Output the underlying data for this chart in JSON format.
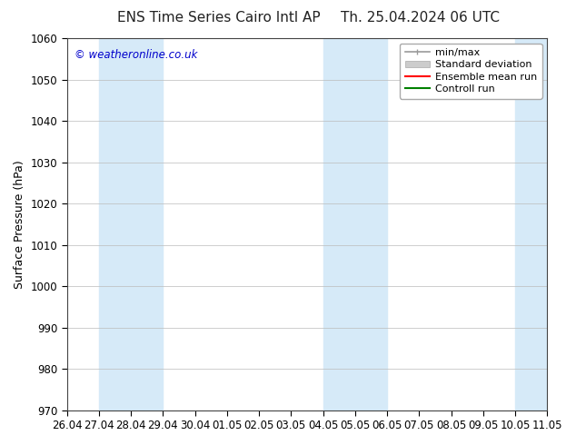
{
  "title_left": "ENS Time Series Cairo Intl AP",
  "title_right": "Th. 25.04.2024 06 UTC",
  "ylabel": "Surface Pressure (hPa)",
  "ylim": [
    970,
    1060
  ],
  "yticks": [
    970,
    980,
    990,
    1000,
    1010,
    1020,
    1030,
    1040,
    1050,
    1060
  ],
  "xtick_labels": [
    "26.04",
    "27.04",
    "28.04",
    "29.04",
    "30.04",
    "01.05",
    "02.05",
    "03.05",
    "04.05",
    "05.05",
    "06.05",
    "07.05",
    "08.05",
    "09.05",
    "10.05",
    "11.05"
  ],
  "n_xticks": 16,
  "xlim": [
    0,
    15
  ],
  "background_color": "#ffffff",
  "plot_bg_color": "#ffffff",
  "shaded_bands": [
    {
      "x_start": 1,
      "x_end": 3,
      "color": "#d6eaf8"
    },
    {
      "x_start": 8,
      "x_end": 10,
      "color": "#d6eaf8"
    },
    {
      "x_start": 14,
      "x_end": 15,
      "color": "#d6eaf8"
    }
  ],
  "watermark_text": "© weatheronline.co.uk",
  "watermark_color": "#0000cc",
  "legend_items": [
    {
      "label": "min/max",
      "color": "#999999",
      "lw": 1.2
    },
    {
      "label": "Standard deviation",
      "color": "#cccccc",
      "lw": 8
    },
    {
      "label": "Ensemble mean run",
      "color": "#ff0000",
      "lw": 1.5
    },
    {
      "label": "Controll run",
      "color": "#008000",
      "lw": 1.5
    }
  ],
  "grid_color": "#bbbbbb",
  "spine_color": "#444444",
  "title_fontsize": 11,
  "tick_fontsize": 8.5,
  "ylabel_fontsize": 9,
  "watermark_fontsize": 8.5,
  "legend_fontsize": 8
}
